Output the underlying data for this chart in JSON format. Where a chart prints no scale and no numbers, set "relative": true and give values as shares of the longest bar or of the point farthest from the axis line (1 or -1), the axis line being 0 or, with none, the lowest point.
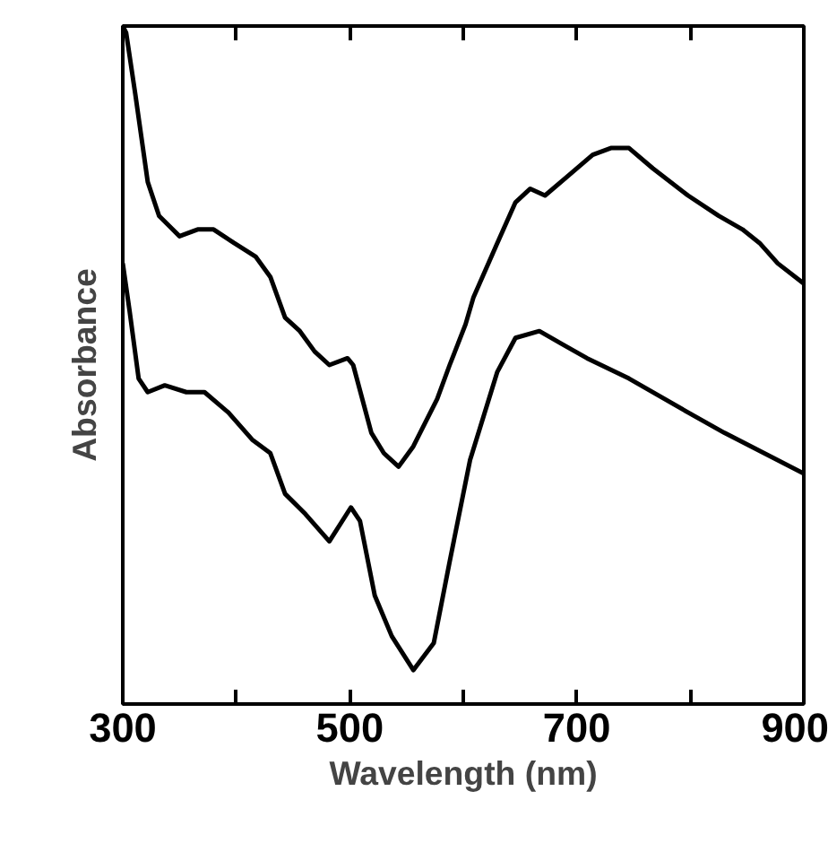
{
  "chart_data": {
    "type": "line",
    "xlabel": "Wavelength (nm)",
    "ylabel": "Absorbance",
    "relative": true,
    "xlim": [
      300,
      900
    ],
    "xticks": [
      300,
      {
        "value": 400,
        "label": null
      },
      500,
      {
        "value": 600,
        "label": null
      },
      700,
      {
        "value": 800,
        "label": null
      },
      900
    ],
    "series": [
      {
        "color": "#000000",
        "x": [
          300,
          303,
          311,
          322,
          332,
          350,
          366,
          380,
          398,
          417,
          430,
          443,
          456,
          469,
          482,
          498,
          503,
          519,
          530,
          543,
          556,
          577,
          588,
          602,
          609,
          630,
          646,
          659,
          672,
          693,
          714,
          730,
          746,
          767,
          798,
          825,
          846,
          861,
          877,
          900
        ],
        "values": [
          1.0,
          0.99,
          0.9,
          0.77,
          0.72,
          0.69,
          0.7,
          0.7,
          0.68,
          0.66,
          0.63,
          0.57,
          0.55,
          0.52,
          0.5,
          0.51,
          0.5,
          0.4,
          0.37,
          0.35,
          0.38,
          0.45,
          0.5,
          0.56,
          0.6,
          0.68,
          0.74,
          0.76,
          0.75,
          0.78,
          0.81,
          0.82,
          0.82,
          0.79,
          0.75,
          0.72,
          0.7,
          0.68,
          0.65,
          0.62
        ]
      },
      {
        "color": "#000000",
        "x": [
          300,
          306,
          314,
          322,
          337,
          356,
          372,
          393,
          414,
          430,
          443,
          461,
          482,
          501,
          509,
          522,
          537,
          556,
          574,
          588,
          606,
          630,
          646,
          667,
          688,
          709,
          746,
          798,
          830,
          900
        ],
        "values": [
          0.65,
          0.58,
          0.48,
          0.46,
          0.47,
          0.46,
          0.46,
          0.43,
          0.39,
          0.37,
          0.31,
          0.28,
          0.24,
          0.29,
          0.27,
          0.16,
          0.1,
          0.05,
          0.09,
          0.21,
          0.36,
          0.49,
          0.54,
          0.55,
          0.53,
          0.51,
          0.48,
          0.43,
          0.4,
          0.34
        ]
      }
    ]
  }
}
